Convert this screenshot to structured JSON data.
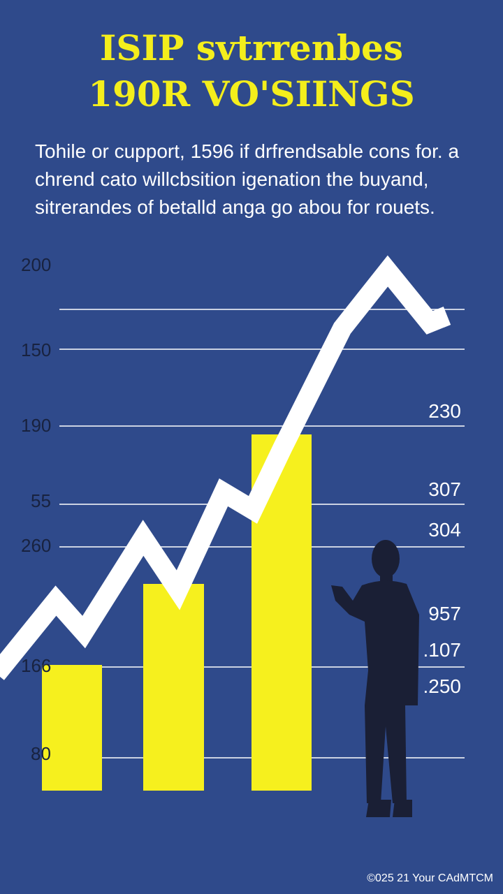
{
  "header": {
    "title_lines": [
      "ISIP svtrrenbes",
      "190R VO'SIINGS"
    ]
  },
  "intro": {
    "lines": [
      "Tohile or cupport, 1596 if drfrendsable cons for. a",
      "chrend cato willcbsition igenation the buyand,",
      "sitrerandes of betalld anga go abou for rouets."
    ]
  },
  "left_labels": [
    "200",
    "150",
    "190",
    "55",
    "260",
    "166",
    "80"
  ],
  "right_labels": [
    "230",
    "307",
    "304",
    "957",
    ".107",
    ".250"
  ],
  "footer": {
    "text": "©025 21 Your CAdMTCM"
  }
}
